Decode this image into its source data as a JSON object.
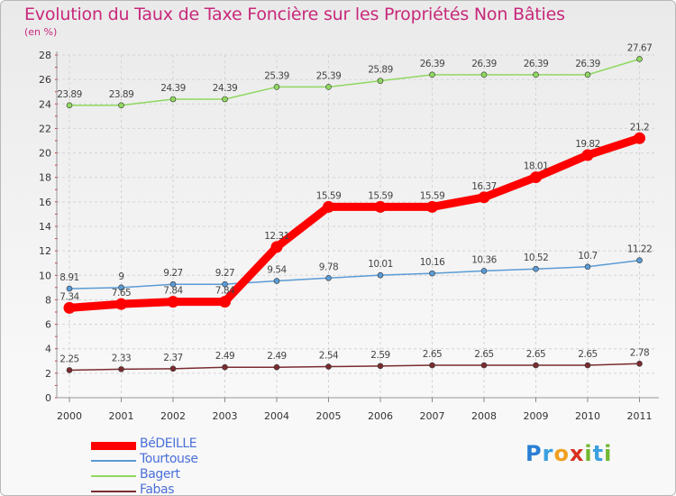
{
  "header": {
    "title": "Evolution du Taux de Taxe Foncière sur les Propriétés Non Bâties",
    "unit": "(en %)"
  },
  "logo": {
    "text": "Proxiti",
    "letters": [
      "P",
      "r",
      "o",
      "x",
      "i",
      "t",
      "i"
    ],
    "letter_colors": [
      "#2a7fd4",
      "#3aa0e0",
      "#f0a020",
      "#d83020",
      "#70b830",
      "#3aa0e0",
      "#70b830"
    ]
  },
  "chart_data": {
    "type": "line",
    "title": "Evolution du Taux de Taxe Foncière sur les Propriétés Non Bâties",
    "ylabel": "(en %)",
    "xlabel": "",
    "ylim": [
      0,
      28
    ],
    "yticks": [
      "0",
      "2",
      "4",
      "6",
      "8",
      "10",
      "12",
      "14",
      "16",
      "18",
      "20",
      "22",
      "24",
      "26",
      "28"
    ],
    "categories": [
      "2000",
      "2001",
      "2002",
      "2003",
      "2004",
      "2005",
      "2006",
      "2007",
      "2008",
      "2009",
      "2010",
      "2011"
    ],
    "grid": true,
    "legend_position": "bottom-left",
    "series": [
      {
        "name": "BéDEILLE",
        "color": "#ff0000",
        "values": [
          7.34,
          7.65,
          7.84,
          7.84,
          12.31,
          15.59,
          15.59,
          15.59,
          16.37,
          18.01,
          19.82,
          21.2
        ],
        "labels": [
          "7.34",
          "7.65",
          "7.84",
          "7.84",
          "12.31",
          "15.59",
          "15.59",
          "15.59",
          "16.37",
          "18.01",
          "19.82",
          "21.2"
        ],
        "emphasis": true
      },
      {
        "name": "Tourtouse",
        "color": "#5b9bd5",
        "values": [
          8.91,
          9,
          9.27,
          9.27,
          9.54,
          9.78,
          10.01,
          10.16,
          10.36,
          10.52,
          10.7,
          11.22
        ],
        "labels": [
          "8.91",
          "9",
          "9.27",
          "9.27",
          "9.54",
          "9.78",
          "10.01",
          "10.16",
          "10.36",
          "10.52",
          "10.7",
          "11.22"
        ],
        "emphasis": false
      },
      {
        "name": "Bagert",
        "color": "#90d860",
        "values": [
          23.89,
          23.89,
          24.39,
          24.39,
          25.39,
          25.39,
          25.89,
          26.39,
          26.39,
          26.39,
          26.39,
          27.67
        ],
        "labels": [
          "23.89",
          "23.89",
          "24.39",
          "24.39",
          "25.39",
          "25.39",
          "25.89",
          "26.39",
          "26.39",
          "26.39",
          "26.39",
          "27.67"
        ],
        "emphasis": false
      },
      {
        "name": "Fabas",
        "color": "#7a2c30",
        "values": [
          2.25,
          2.33,
          2.37,
          2.49,
          2.49,
          2.54,
          2.59,
          2.65,
          2.65,
          2.65,
          2.65,
          2.78
        ],
        "labels": [
          "2.25",
          "2.33",
          "2.37",
          "2.49",
          "2.49",
          "2.54",
          "2.59",
          "2.65",
          "2.65",
          "2.65",
          "2.65",
          "2.78"
        ],
        "emphasis": false
      }
    ]
  }
}
